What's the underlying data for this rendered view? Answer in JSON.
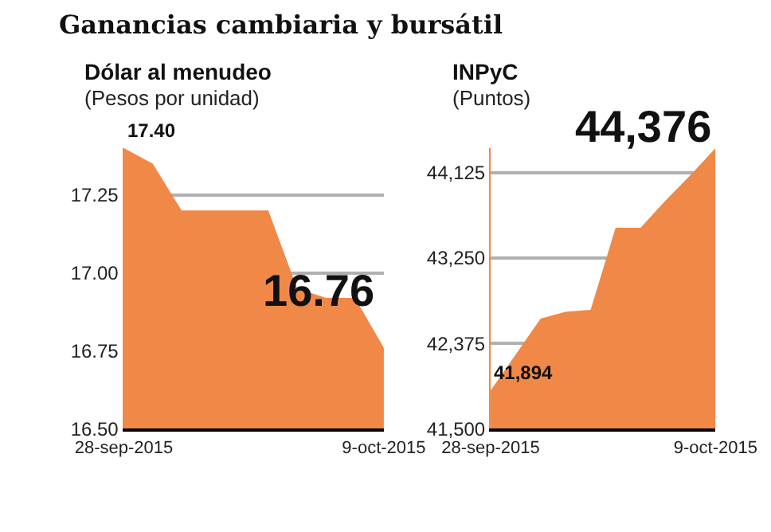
{
  "chart_data": [
    {
      "type": "area",
      "title": "Dólar al menudeo",
      "subtitle": "(Pesos por unidad)",
      "annotations": [
        "Ganancias cambiaria y bursátil"
      ],
      "categories": [
        "28-sep-2015",
        null,
        null,
        null,
        null,
        null,
        null,
        null,
        null,
        "9-oct-2015"
      ],
      "series": [
        {
          "color": "#f08848",
          "values": [
            17.4,
            17.35,
            17.2,
            17.2,
            17.2,
            17.2,
            16.95,
            16.92,
            16.92,
            16.76
          ],
          "value_labels": [
            "17.40",
            null,
            null,
            null,
            null,
            null,
            null,
            null,
            null,
            "16.76"
          ]
        }
      ],
      "ylim": [
        16.5,
        17.4
      ],
      "yticks": [
        {
          "value": 16.5,
          "label": "16.50"
        },
        {
          "value": 16.75,
          "label": "16.75"
        },
        {
          "value": 17.0,
          "label": "17.00"
        },
        {
          "value": 17.25,
          "label": "17.25"
        }
      ],
      "grid": "y"
    },
    {
      "type": "area",
      "title": "INPyC",
      "subtitle": "(Puntos)",
      "categories": [
        "28-sep-2015",
        null,
        null,
        null,
        null,
        null,
        null,
        null,
        null,
        "9-oct-2015"
      ],
      "series": [
        {
          "color": "#f08848",
          "values": [
            41894,
            42260,
            42630,
            42700,
            42720,
            43560,
            43560,
            43840,
            44100,
            44376
          ],
          "value_labels": [
            "41,894",
            null,
            null,
            null,
            null,
            null,
            null,
            null,
            null,
            "44,376"
          ]
        }
      ],
      "ylim": [
        41500,
        44376
      ],
      "yticks": [
        {
          "value": 41500,
          "label": "41,500"
        },
        {
          "value": 42375,
          "label": "42,375"
        },
        {
          "value": 43250,
          "label": "43,250"
        },
        {
          "value": 44125,
          "label": "44,125"
        }
      ],
      "grid": "y"
    }
  ]
}
